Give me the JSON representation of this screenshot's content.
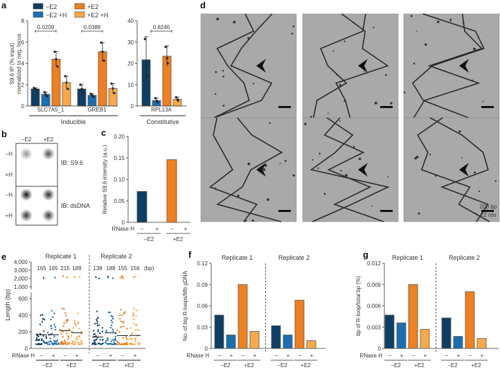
{
  "colors": {
    "minusE2": "#0d3f66",
    "minusE2H": "#1b6fb0",
    "plusE2": "#f07f1e",
    "plusE2H": "#f8aa48"
  },
  "panel_labels": [
    "a",
    "b",
    "c",
    "d",
    "e",
    "f",
    "g"
  ],
  "chart_data": [
    {
      "id": "a",
      "type": "bar",
      "legend": [
        "−E2",
        "+E2",
        "−E2 +H",
        "+E2 +H"
      ],
      "ylabel": "S9.6 IP (% input) normalized to neg. locus",
      "groups": [
        {
          "name": "SLC7A5_1",
          "values": [
            1.6,
            1.1,
            4.4,
            2.2
          ],
          "err": [
            0.1,
            0.2,
            0.7,
            0.6
          ],
          "pvalue": "0.0209",
          "ylim": [
            0,
            8
          ],
          "ticks": [
            "0",
            "2",
            "4",
            "6",
            "8"
          ]
        },
        {
          "name": "GREB1",
          "values": [
            1.6,
            1.0,
            5.1,
            1.65
          ],
          "err": [
            0.4,
            0.15,
            0.85,
            0.45
          ],
          "pvalue": "0.0388",
          "ylim": [
            0,
            8
          ]
        },
        {
          "name": "RPL13A",
          "values": [
            21.7,
            2.6,
            23.4,
            3.2
          ],
          "err": [
            10.8,
            1.2,
            4.8,
            1.0
          ],
          "pvalue": "0.8246",
          "ylim": [
            0,
            40
          ],
          "ticks": [
            "0",
            "10",
            "20",
            "30",
            "40"
          ]
        }
      ],
      "categories": [
        "Inducible",
        "Constitutive"
      ]
    },
    {
      "id": "b",
      "type": "dot-blot",
      "columns": [
        "−E2",
        "+E2"
      ],
      "rows": [
        "−H",
        "+H",
        "−H",
        "+H"
      ],
      "blots": [
        "IB: S9.6",
        "IB: dsDNA"
      ]
    },
    {
      "id": "c",
      "type": "bar",
      "ylabel": "Relative S9.6 intensity (a.u.)",
      "ylim": [
        0,
        0.2
      ],
      "ticks": [
        "0",
        "0.05",
        "0.10",
        "0.15",
        "0.20"
      ],
      "values": [
        0.072,
        0,
        0.146,
        0
      ],
      "rnase_label": "RNase H",
      "rnase": [
        "−",
        "+",
        "−",
        "+"
      ],
      "groups": [
        "−E2",
        "+E2"
      ]
    },
    {
      "id": "e",
      "type": "scatter",
      "ylabel": "Length (bp)",
      "ticks": [
        "0",
        "200",
        "400",
        "600",
        "1,000",
        "2,000",
        "3,000",
        "4,000"
      ],
      "replicates": [
        "Replicate 1",
        "Replicate 2"
      ],
      "medians": [
        165,
        165,
        215,
        189,
        138,
        188,
        155,
        156
      ],
      "median_labels": [
        "165",
        "165",
        "215",
        "189",
        "138",
        "188",
        "155",
        "156"
      ],
      "unit": "(bp)",
      "rnase_label": "RNase H",
      "rnase": [
        "−",
        "+",
        "−",
        "+",
        "−",
        "+",
        "−",
        "+"
      ],
      "groups": [
        "−E2",
        "+E2",
        "−E2",
        "+E2"
      ]
    },
    {
      "id": "f",
      "type": "bar",
      "ylabel": "No. of big R-loops/Mb gDNA",
      "ylim": [
        0,
        0.12
      ],
      "ticks": [
        "0",
        "0.03",
        "0.06",
        "0.09",
        "0.12"
      ],
      "replicates": [
        "Replicate 1",
        "Replicate 2"
      ],
      "values": [
        0.047,
        0.019,
        0.09,
        0.024,
        0.032,
        0.019,
        0.068,
        0.011
      ],
      "rnase_label": "RNase H",
      "rnase": [
        "−",
        "+",
        "−",
        "+",
        "−",
        "+",
        "−",
        "+"
      ],
      "groups": [
        "−E2",
        "+E2",
        "−E2",
        "+E2"
      ]
    },
    {
      "id": "g",
      "type": "bar",
      "ylabel": "bp of R-loop/total bp (%)",
      "ylim": [
        0,
        0.012
      ],
      "ticks": [
        "0",
        "0.003",
        "0.006",
        "0.009",
        "0.012"
      ],
      "replicates": [
        "Replicate 1",
        "Replicate 2"
      ],
      "values": [
        0.0047,
        0.0036,
        0.009,
        0.0027,
        0.0043,
        0.0017,
        0.008,
        0.0014
      ],
      "rnase_label": "RNase H",
      "rnase": [
        "−",
        "+",
        "−",
        "+",
        "−",
        "+",
        "−",
        "+"
      ],
      "groups": [
        "−E2",
        "+E2",
        "−E2",
        "+E2"
      ]
    }
  ],
  "micrographs": {
    "scale_bp": "200 bp",
    "scale_nm": "72 nm"
  }
}
